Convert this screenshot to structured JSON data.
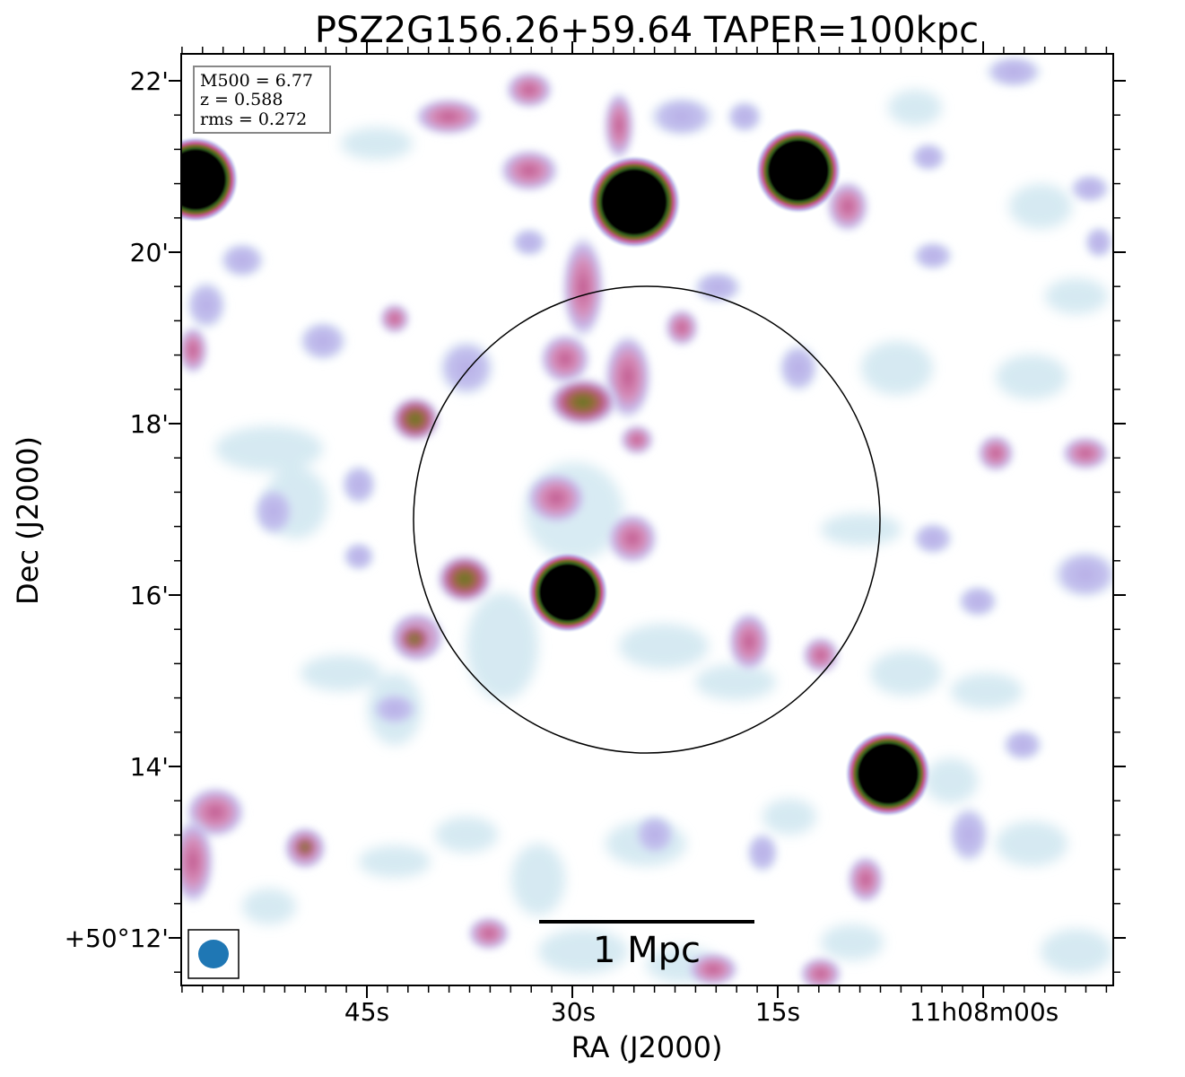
{
  "title": "PSZ2G156.26+59.64 TAPER=100kpc",
  "axes": {
    "xlabel": "RA (J2000)",
    "ylabel": "Dec (J2000)",
    "x_ticks": [
      "45s",
      "30s",
      "15s",
      "11h08m00s"
    ],
    "y_ticks": [
      "22'",
      "20'",
      "18'",
      "16'",
      "14'",
      "+50°12'"
    ]
  },
  "info_box": {
    "line1": "M500 = 6.77",
    "line2": "z = 0.588",
    "line3": "rms = 0.272"
  },
  "scale_bar": {
    "label": "1 Mpc"
  },
  "colors": {
    "beam": "#1f77b4",
    "strong_source": "#000000",
    "ring_green": "#4a7a1a",
    "emission_pink": "#c26096",
    "emission_lavender": "#b9b1e6",
    "emission_ice": "#cfe8f2"
  }
}
